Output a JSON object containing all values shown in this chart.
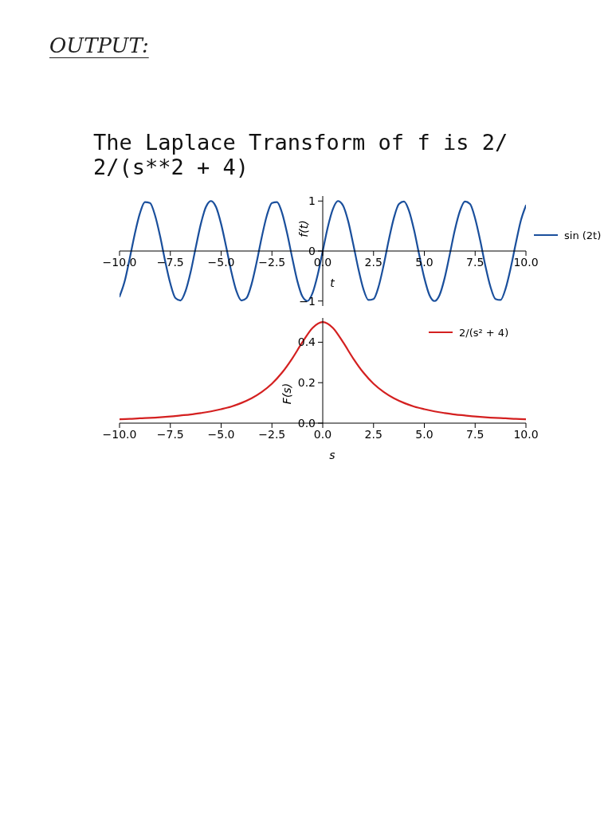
{
  "chart_data": [
    {
      "type": "line",
      "title": "The Laplace Transform of f is 2/",
      "subtitle": "2/(s**2 + 4)",
      "annotations": [
        "OUTPUT:"
      ],
      "xlabel": "t",
      "ylabel": "f(t)",
      "x": [
        -10,
        -9.75,
        -9.5,
        -9.25,
        -9,
        -8.75,
        -8.5,
        -8.25,
        -8,
        -7.75,
        -7.5,
        -7.25,
        -7,
        -6.75,
        -6.5,
        -6.25,
        -6,
        -5.75,
        -5.5,
        -5.25,
        -5,
        -4.75,
        -4.5,
        -4.25,
        -4,
        -3.75,
        -3.5,
        -3.25,
        -3,
        -2.75,
        -2.5,
        -2.25,
        -2,
        -1.75,
        -1.5,
        -1.25,
        -1,
        -0.75,
        -0.5,
        -0.25,
        0,
        0.25,
        0.5,
        0.75,
        1,
        1.25,
        1.5,
        1.75,
        2,
        2.25,
        2.5,
        2.75,
        3,
        3.25,
        3.5,
        3.75,
        4,
        4.25,
        4.5,
        4.75,
        5,
        5.25,
        5.5,
        5.75,
        6,
        6.25,
        6.5,
        6.75,
        7,
        7.25,
        7.5,
        7.75,
        8,
        8.25,
        8.5,
        8.75,
        9,
        9.25,
        9.5,
        9.75,
        10
      ],
      "series": [
        {
          "name": "sin (2t)",
          "color": "#1a4f9c",
          "values": [
            -0.91,
            -0.61,
            -0.15,
            0.34,
            0.75,
            0.98,
            0.96,
            0.71,
            0.29,
            -0.21,
            -0.65,
            -0.94,
            -0.99,
            -0.8,
            -0.42,
            0.07,
            0.54,
            0.88,
            1.0,
            0.88,
            0.54,
            0.08,
            -0.41,
            -0.8,
            -0.99,
            -0.94,
            -0.66,
            -0.22,
            0.28,
            0.71,
            0.96,
            0.98,
            0.76,
            0.35,
            -0.14,
            -0.6,
            -0.91,
            -1.0,
            -0.84,
            -0.48,
            0,
            0.48,
            0.84,
            1.0,
            0.91,
            0.6,
            0.14,
            -0.35,
            -0.76,
            -0.98,
            -0.96,
            -0.71,
            -0.28,
            0.22,
            0.66,
            0.94,
            0.99,
            0.8,
            0.41,
            -0.08,
            -0.54,
            -0.88,
            -1.0,
            -0.88,
            -0.54,
            -0.07,
            0.42,
            0.8,
            0.99,
            0.94,
            0.65,
            0.21,
            -0.29,
            -0.71,
            -0.96,
            -0.98,
            -0.75,
            -0.34,
            0.15,
            0.61,
            0.91
          ]
        }
      ],
      "xlim": [
        -10,
        10
      ],
      "xticks": [
        {
          "value": -10,
          "label": "−10.0"
        },
        {
          "value": -7.5,
          "label": "−7.5"
        },
        {
          "value": -5,
          "label": "−5.0"
        },
        {
          "value": -2.5,
          "label": "−2.5"
        },
        {
          "value": 0,
          "label": "0.0"
        },
        {
          "value": 2.5,
          "label": "2.5"
        },
        {
          "value": 5,
          "label": "5.0"
        },
        {
          "value": 7.5,
          "label": "7.5"
        },
        {
          "value": 10,
          "label": "10.0"
        }
      ],
      "ylim": [
        -1.1,
        1.1
      ],
      "yticks": [
        {
          "value": -1,
          "label": "−1"
        },
        {
          "value": 0,
          "label": "0"
        },
        {
          "value": 1,
          "label": "1"
        }
      ],
      "legend": "right"
    },
    {
      "type": "line",
      "xlabel": "s",
      "ylabel": "F(s)",
      "x": [
        -10,
        -9.5,
        -9,
        -8.5,
        -8,
        -7.5,
        -7,
        -6.5,
        -6,
        -5.5,
        -5,
        -4.5,
        -4,
        -3.5,
        -3,
        -2.5,
        -2,
        -1.5,
        -1,
        -0.5,
        0,
        0.5,
        1,
        1.5,
        2,
        2.5,
        3,
        3.5,
        4,
        4.5,
        5,
        5.5,
        6,
        6.5,
        7,
        7.5,
        8,
        8.5,
        9,
        9.5,
        10
      ],
      "series": [
        {
          "name": "2/(s² + 4)",
          "color": "#d42020",
          "values": [
            0.019,
            0.021,
            0.024,
            0.026,
            0.029,
            0.033,
            0.038,
            0.043,
            0.05,
            0.058,
            0.069,
            0.082,
            0.1,
            0.123,
            0.154,
            0.195,
            0.25,
            0.32,
            0.4,
            0.471,
            0.5,
            0.471,
            0.4,
            0.32,
            0.25,
            0.195,
            0.154,
            0.123,
            0.1,
            0.082,
            0.069,
            0.058,
            0.05,
            0.043,
            0.038,
            0.033,
            0.029,
            0.026,
            0.024,
            0.021,
            0.019
          ]
        }
      ],
      "xlim": [
        -10,
        10
      ],
      "xticks": [
        {
          "value": -10,
          "label": "−10.0"
        },
        {
          "value": -7.5,
          "label": "−7.5"
        },
        {
          "value": -5,
          "label": "−5.0"
        },
        {
          "value": -2.5,
          "label": "−2.5"
        },
        {
          "value": 0,
          "label": "0.0"
        },
        {
          "value": 2.5,
          "label": "2.5"
        },
        {
          "value": 5,
          "label": "5.0"
        },
        {
          "value": 7.5,
          "label": "7.5"
        },
        {
          "value": 10,
          "label": "10.0"
        }
      ],
      "ylim": [
        0,
        0.52
      ],
      "yticks": [
        {
          "value": 0,
          "label": "0.0"
        },
        {
          "value": 0.2,
          "label": "0.2"
        },
        {
          "value": 0.4,
          "label": "0.4"
        }
      ],
      "legend": "top right"
    }
  ]
}
